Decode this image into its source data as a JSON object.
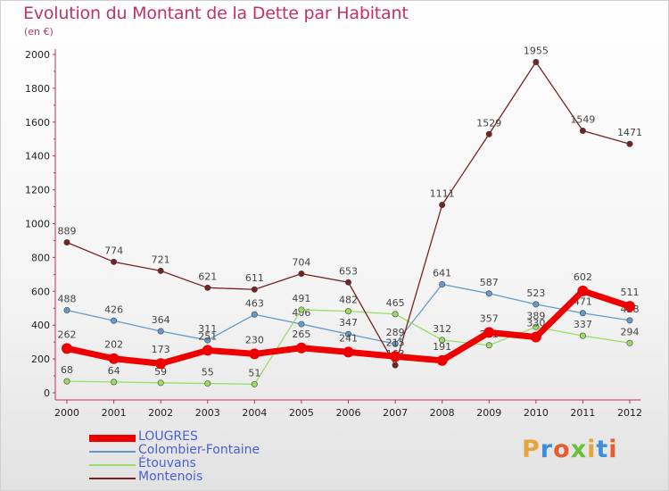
{
  "header": {
    "title": "Evolution du Montant de la Dette par Habitant",
    "unit": "(en €)"
  },
  "logo": {
    "text": "Proxiti",
    "colors": [
      "#e8a43c",
      "#3c8ede",
      "#e85b2a",
      "#6cbf3a",
      "#e8a43c",
      "#3c8ede",
      "#e85b2a"
    ]
  },
  "chart_data": {
    "type": "line",
    "title": "Evolution du Montant de la Dette par Habitant",
    "subtitle": "(en €)",
    "x": [
      "2000",
      "2001",
      "2002",
      "2003",
      "2004",
      "2005",
      "2006",
      "2007",
      "2008",
      "2009",
      "2010",
      "2011",
      "2012"
    ],
    "ylim": [
      0,
      2000
    ],
    "yticks": [
      0,
      200,
      400,
      600,
      800,
      1000,
      1200,
      1400,
      1600,
      1800,
      2000
    ],
    "grid": false,
    "legend_position": "bottom-left",
    "series": [
      {
        "name": "LOUGRES",
        "color": "#ee0000",
        "values": [
          262,
          202,
          173,
          251,
          230,
          265,
          241,
          215,
          191,
          357,
          330,
          602,
          511
        ]
      },
      {
        "name": "Colombier-Fontaine",
        "color": "#6699cc",
        "values": [
          488,
          426,
          364,
          311,
          463,
          406,
          347,
          289,
          641,
          587,
          523,
          471,
          428
        ]
      },
      {
        "name": "Étouvans",
        "color": "#99dd66",
        "values": [
          68,
          64,
          59,
          55,
          51,
          491,
          482,
          465,
          312,
          281,
          389,
          337,
          294
        ]
      },
      {
        "name": "Montenois",
        "color": "#772222",
        "values": [
          889,
          774,
          721,
          621,
          611,
          704,
          653,
          163,
          1111,
          1529,
          1955,
          1549,
          1471
        ]
      }
    ]
  }
}
